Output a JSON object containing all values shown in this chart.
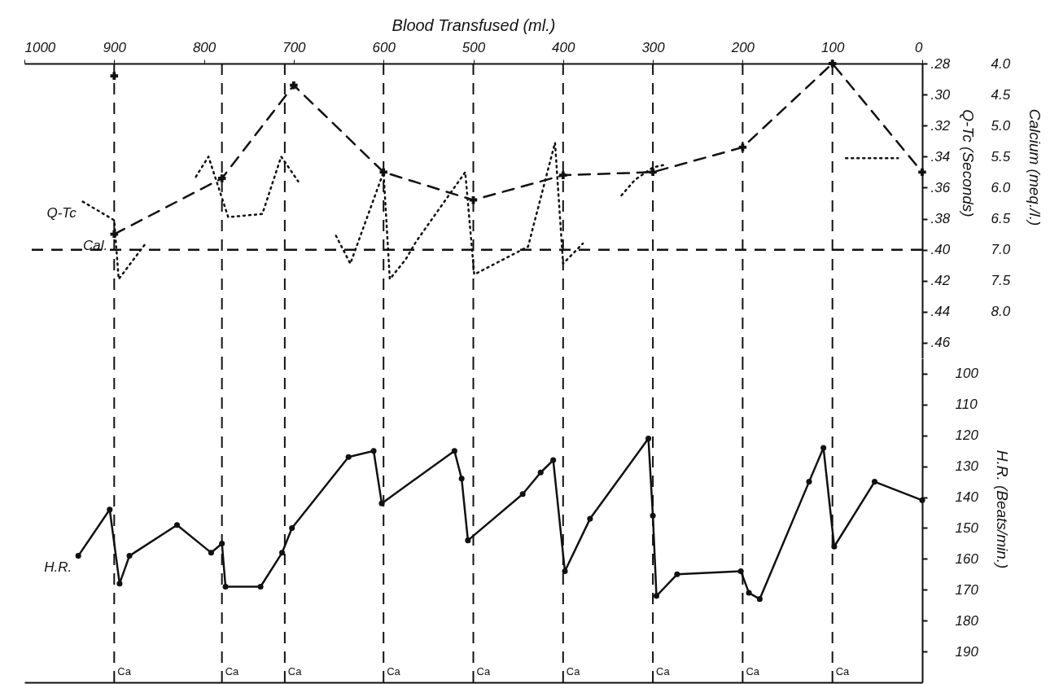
{
  "chart_data": [
    {
      "type": "line",
      "xlabel": "Blood Transfused (ml.)",
      "ylabel": "Calcium (meq./l.)",
      "y2label": "Q-Tc (Seconds)",
      "xlim": [
        1000,
        0
      ],
      "xticks": [
        0,
        100,
        200,
        300,
        400,
        500,
        600,
        700,
        800,
        900,
        1000
      ],
      "ylim": [
        8.75,
        4.0
      ],
      "yticks": [
        {
          "value": 4.0,
          "label": "4.0"
        },
        4.5,
        {
          "value": 5.0,
          "label": "5.0"
        },
        5.5,
        {
          "value": 6.0,
          "label": "6.0"
        },
        6.5,
        {
          "value": 7.0,
          "label": "7.0"
        },
        7.5,
        {
          "value": 8.0,
          "label": "8.0"
        }
      ],
      "y2lim": [
        0.47,
        0.28
      ],
      "y2ticks": [
        {
          "value": 0.28,
          "label": ".28"
        },
        {
          "value": 0.3,
          "label": ".30"
        },
        {
          "value": 0.32,
          "label": ".32"
        },
        {
          "value": 0.34,
          "label": ".34"
        },
        {
          "value": 0.36,
          "label": ".36"
        },
        {
          "value": 0.38,
          "label": ".38"
        },
        {
          "value": 0.4,
          "label": ".40"
        },
        {
          "value": 0.42,
          "label": ".42"
        },
        {
          "value": 0.44,
          "label": ".44"
        },
        {
          "value": 0.46,
          "label": ".46"
        }
      ],
      "series": [
        {
          "name": "Cal.",
          "color": "#111111",
          "line_style": "dashed",
          "marker": "cross",
          "x": [
            0,
            100,
            200,
            300,
            400,
            500,
            600,
            700,
            780,
            900
          ],
          "values": [
            5.75,
            4.0,
            5.35,
            5.75,
            5.8,
            6.2,
            5.75,
            4.35,
            5.85,
            6.75
          ]
        },
        {
          "name": "Q-Tc",
          "axis": "y2",
          "color": "#111111",
          "line_style": "dotted",
          "marker": "none",
          "x": [
            27,
            85,
            180,
            285,
            300,
            320,
            335,
            360,
            378,
            400,
            409,
            439,
            499,
            509,
            564,
            575,
            593,
            600,
            637,
            653,
            680,
            695,
            714,
            735,
            773,
            795,
            809,
            840,
            865,
            895,
            900,
            935
          ],
          "values": [
            0.341,
            0.341,
            null,
            0.345,
            0.347,
            0.355,
            0.365,
            null,
            0.396,
            0.409,
            0.331,
            0.398,
            0.416,
            0.35,
            0.395,
            0.406,
            0.419,
            0.35,
            0.409,
            0.391,
            null,
            0.356,
            0.34,
            0.377,
            0.379,
            0.34,
            0.353,
            null,
            0.396,
            0.419,
            0.381,
            0.369
          ]
        },
        {
          "type": "scatter",
          "color": "#111111",
          "marker": "cross",
          "x": [
            900
          ],
          "values": [
            4.2
          ]
        }
      ],
      "ref_lines": [
        {
          "axis": "x",
          "value": 100,
          "line_style": "dashed"
        },
        {
          "axis": "x",
          "value": 200,
          "line_style": "dashed"
        },
        {
          "axis": "x",
          "value": 300,
          "line_style": "dashed"
        },
        {
          "axis": "x",
          "value": 400,
          "line_style": "dashed"
        },
        {
          "axis": "x",
          "value": 500,
          "line_style": "dashed"
        },
        {
          "axis": "x",
          "value": 600,
          "line_style": "dashed"
        },
        {
          "axis": "x",
          "value": 710,
          "line_style": "dashed"
        },
        {
          "axis": "x",
          "value": 780,
          "line_style": "dashed"
        },
        {
          "axis": "x",
          "value": 900,
          "line_style": "dashed"
        },
        {
          "axis": "y2",
          "value": 0.4,
          "line_style": "dashed"
        }
      ]
    },
    {
      "type": "line",
      "ylabel": "H.R. (Beats/min.)",
      "tick_labels": "y",
      "xlim": [
        1000,
        0
      ],
      "ylim": [
        200,
        95
      ],
      "yticks": [
        100,
        110,
        120,
        130,
        140,
        150,
        160,
        170,
        180,
        190
      ],
      "series": [
        {
          "name": "H.R.",
          "color": "#111111",
          "line_style": "solid",
          "marker": "circle",
          "x": [
            0,
            53,
            98,
            110,
            126,
            181,
            193,
            202,
            273,
            296,
            300,
            305,
            370,
            398,
            411,
            425,
            445,
            506,
            513,
            521,
            602,
            611,
            639,
            702,
            713,
            737,
            776,
            780,
            792,
            830,
            883,
            894,
            905,
            940
          ],
          "values": [
            141,
            135,
            156,
            124,
            135,
            173,
            171,
            164,
            165,
            172,
            146,
            121,
            147,
            164,
            128,
            132,
            139,
            154,
            134,
            125,
            142,
            125,
            127,
            150,
            158,
            169,
            169,
            155,
            158,
            149,
            159,
            168,
            144,
            159
          ]
        }
      ],
      "ref_lines": [
        {
          "axis": "x",
          "value": 100,
          "label": "Ca",
          "line_style": "dashed"
        },
        {
          "axis": "x",
          "value": 200,
          "label": "Ca",
          "line_style": "dashed"
        },
        {
          "axis": "x",
          "value": 300,
          "label": "Ca",
          "line_style": "dashed"
        },
        {
          "axis": "x",
          "value": 400,
          "label": "Ca",
          "line_style": "dashed"
        },
        {
          "axis": "x",
          "value": 500,
          "label": "Ca",
          "line_style": "dashed"
        },
        {
          "axis": "x",
          "value": 600,
          "label": "Ca",
          "line_style": "dashed"
        },
        {
          "axis": "x",
          "value": 710,
          "label": "Ca",
          "line_style": "dashed"
        },
        {
          "axis": "x",
          "value": 780,
          "label": "Ca",
          "line_style": "dashed"
        },
        {
          "axis": "x",
          "value": 900,
          "label": "Ca",
          "line_style": "dashed"
        }
      ]
    }
  ]
}
